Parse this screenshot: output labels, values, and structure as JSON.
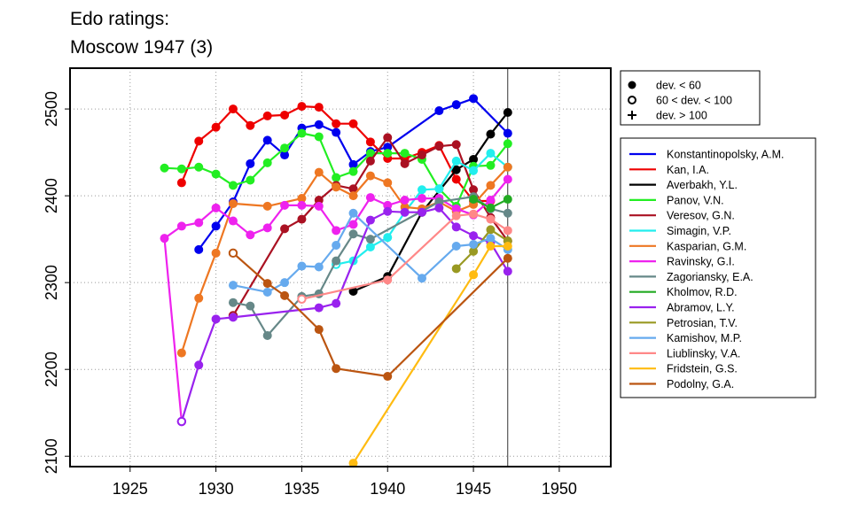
{
  "title": {
    "line1": "Edo ratings:",
    "line2": "Moscow 1947 (3)"
  },
  "colors": {
    "frame": "#000000",
    "grid": "#999999"
  },
  "chart_data": {
    "type": "line",
    "title": "Edo ratings: Moscow 1947 (3)",
    "xlabel": "",
    "ylabel": "",
    "xlim": [
      1921.5,
      1953
    ],
    "ylim": [
      2088,
      2547
    ],
    "x_ticks": [
      1925,
      1930,
      1935,
      1940,
      1945,
      1950
    ],
    "y_ticks": [
      2100,
      2200,
      2300,
      2400,
      2500
    ],
    "grid": true,
    "reference_line_x": 1947,
    "marker_legend": [
      {
        "label": "dev. < 60",
        "marker": "filled-circle"
      },
      {
        "label": "60 < dev. < 100",
        "marker": "open-circle"
      },
      {
        "label": "dev. > 100",
        "marker": "plus"
      }
    ],
    "legend_placement": "right",
    "series": [
      {
        "name": "Konstantinopolsky, A.M.",
        "color": "#0000ee",
        "points": [
          [
            1929,
            2338,
            "f"
          ],
          [
            1930,
            2365,
            "f"
          ],
          [
            1931,
            2393,
            "f"
          ],
          [
            1932,
            2437,
            "f"
          ],
          [
            1933,
            2464,
            "f"
          ],
          [
            1934,
            2447,
            "f"
          ],
          [
            1935,
            2478,
            "f"
          ],
          [
            1936,
            2482,
            "f"
          ],
          [
            1937,
            2473,
            "f"
          ],
          [
            1938,
            2436,
            "f"
          ],
          [
            1939,
            2451,
            "f"
          ],
          [
            1940,
            2456,
            "f"
          ],
          [
            1943,
            2498,
            "f"
          ],
          [
            1944,
            2505,
            "f"
          ],
          [
            1945,
            2512,
            "f"
          ],
          [
            1947,
            2472,
            "f"
          ]
        ]
      },
      {
        "name": "Kan, I.A.",
        "color": "#ee0000",
        "points": [
          [
            1928,
            2415,
            "f"
          ],
          [
            1929,
            2463,
            "f"
          ],
          [
            1930,
            2479,
            "f"
          ],
          [
            1931,
            2500,
            "f"
          ],
          [
            1932,
            2481,
            "f"
          ],
          [
            1933,
            2492,
            "f"
          ],
          [
            1934,
            2493,
            "f"
          ],
          [
            1935,
            2503,
            "f"
          ],
          [
            1936,
            2502,
            "f"
          ],
          [
            1937,
            2483,
            "f"
          ],
          [
            1938,
            2483,
            "f"
          ],
          [
            1939,
            2462,
            "f"
          ],
          [
            1940,
            2443,
            "f"
          ],
          [
            1941,
            2443,
            "f"
          ],
          [
            1942,
            2450,
            "f"
          ],
          [
            1943,
            2458,
            "f"
          ],
          [
            1944,
            2419,
            "f"
          ],
          [
            1945,
            2394,
            "f"
          ],
          [
            1946,
            2394,
            "f"
          ]
        ]
      },
      {
        "name": "Averbakh, Y.L.",
        "color": "#000000",
        "points": [
          [
            1938,
            2290,
            "f"
          ],
          [
            1940,
            2307,
            "f"
          ],
          [
            1942,
            2381,
            "f"
          ],
          [
            1944,
            2430,
            "f"
          ],
          [
            1945,
            2442,
            "f"
          ],
          [
            1946,
            2471,
            "f"
          ],
          [
            1947,
            2496,
            "f"
          ]
        ]
      },
      {
        "name": "Panov, V.N.",
        "color": "#22ee22",
        "points": [
          [
            1927,
            2432,
            "f"
          ],
          [
            1928,
            2431,
            "f"
          ],
          [
            1929,
            2433,
            "f"
          ],
          [
            1930,
            2425,
            "f"
          ],
          [
            1931,
            2412,
            "f"
          ],
          [
            1932,
            2418,
            "f"
          ],
          [
            1933,
            2438,
            "f"
          ],
          [
            1934,
            2455,
            "f"
          ],
          [
            1935,
            2472,
            "f"
          ],
          [
            1936,
            2468,
            "f"
          ],
          [
            1937,
            2421,
            "f"
          ],
          [
            1938,
            2428,
            "f"
          ],
          [
            1939,
            2449,
            "f"
          ],
          [
            1940,
            2449,
            "f"
          ],
          [
            1941,
            2449,
            "f"
          ],
          [
            1942,
            2442,
            "f"
          ],
          [
            1943,
            2408,
            "f"
          ],
          [
            1944,
            2388,
            "f"
          ],
          [
            1945,
            2434,
            "f"
          ],
          [
            1946,
            2435,
            "f"
          ],
          [
            1947,
            2460,
            "f"
          ]
        ]
      },
      {
        "name": "Veresov, G.N.",
        "color": "#aa1122",
        "points": [
          [
            1931,
            2262,
            "o"
          ],
          [
            1934,
            2362,
            "f"
          ],
          [
            1935,
            2373,
            "f"
          ],
          [
            1936,
            2395,
            "f"
          ],
          [
            1937,
            2412,
            "f"
          ],
          [
            1938,
            2408,
            "f"
          ],
          [
            1939,
            2440,
            "f"
          ],
          [
            1940,
            2467,
            "f"
          ],
          [
            1941,
            2437,
            "f"
          ],
          [
            1942,
            2447,
            "f"
          ],
          [
            1943,
            2457,
            "f"
          ],
          [
            1944,
            2459,
            "f"
          ],
          [
            1945,
            2407,
            "f"
          ],
          [
            1946,
            2375,
            "f"
          ],
          [
            1947,
            2348,
            "f"
          ]
        ]
      },
      {
        "name": "Simagin, V.P.",
        "color": "#22eeee",
        "points": [
          [
            1937,
            2321,
            "o"
          ],
          [
            1938,
            2325,
            "f"
          ],
          [
            1939,
            2341,
            "f"
          ],
          [
            1940,
            2352,
            "f"
          ],
          [
            1941,
            2381,
            "f"
          ],
          [
            1942,
            2407,
            "f"
          ],
          [
            1943,
            2408,
            "f"
          ],
          [
            1944,
            2440,
            "f"
          ],
          [
            1945,
            2429,
            "f"
          ],
          [
            1946,
            2449,
            "f"
          ],
          [
            1947,
            2433,
            "f"
          ]
        ]
      },
      {
        "name": "Kasparian, G.M.",
        "color": "#ee7722",
        "points": [
          [
            1928,
            2219,
            "f"
          ],
          [
            1929,
            2282,
            "f"
          ],
          [
            1930,
            2334,
            "f"
          ],
          [
            1931,
            2391,
            "f"
          ],
          [
            1933,
            2388,
            "f"
          ],
          [
            1935,
            2397,
            "f"
          ],
          [
            1936,
            2427,
            "f"
          ],
          [
            1937,
            2410,
            "f"
          ],
          [
            1938,
            2400,
            "f"
          ],
          [
            1939,
            2423,
            "f"
          ],
          [
            1940,
            2415,
            "f"
          ],
          [
            1941,
            2387,
            "f"
          ],
          [
            1942,
            2385,
            "f"
          ],
          [
            1943,
            2393,
            "f"
          ],
          [
            1944,
            2382,
            "f"
          ],
          [
            1945,
            2390,
            "f"
          ],
          [
            1946,
            2412,
            "f"
          ],
          [
            1947,
            2433,
            "f"
          ]
        ]
      },
      {
        "name": "Ravinsky, G.I.",
        "color": "#ee22ee",
        "points": [
          [
            1928,
            2140,
            "o"
          ],
          [
            1927,
            2351,
            "f"
          ],
          [
            1928,
            2365,
            "f"
          ],
          [
            1929,
            2369,
            "f"
          ],
          [
            1930,
            2386,
            "f"
          ],
          [
            1931,
            2371,
            "f"
          ],
          [
            1932,
            2355,
            "f"
          ],
          [
            1933,
            2363,
            "f"
          ],
          [
            1934,
            2389,
            "f"
          ],
          [
            1935,
            2389,
            "f"
          ],
          [
            1936,
            2388,
            "f"
          ],
          [
            1937,
            2360,
            "f"
          ],
          [
            1938,
            2367,
            "f"
          ],
          [
            1939,
            2398,
            "f"
          ],
          [
            1940,
            2389,
            "f"
          ],
          [
            1941,
            2395,
            "f"
          ],
          [
            1942,
            2397,
            "f"
          ],
          [
            1943,
            2397,
            "f"
          ],
          [
            1944,
            2385,
            "f"
          ],
          [
            1945,
            2378,
            "f"
          ],
          [
            1946,
            2395,
            "f"
          ],
          [
            1947,
            2419,
            "f"
          ]
        ]
      },
      {
        "name": "Zagoriansky, E.A.",
        "color": "#668888",
        "points": [
          [
            1931,
            2277,
            "f"
          ],
          [
            1932,
            2273,
            "f"
          ],
          [
            1933,
            2239,
            "f"
          ],
          [
            1935,
            2284,
            "f"
          ],
          [
            1936,
            2287,
            "f"
          ],
          [
            1937,
            2325,
            "f"
          ],
          [
            1938,
            2356,
            "f"
          ],
          [
            1939,
            2350,
            "f"
          ],
          [
            1943,
            2393,
            "f"
          ],
          [
            1945,
            2399,
            "f"
          ],
          [
            1946,
            2385,
            "f"
          ],
          [
            1947,
            2380,
            "f"
          ]
        ]
      },
      {
        "name": "Kholmov, R.D.",
        "color": "#22aa22",
        "points": [
          [
            1945,
            2396,
            "f"
          ],
          [
            1946,
            2386,
            "f"
          ],
          [
            1947,
            2396,
            "f"
          ]
        ]
      },
      {
        "name": "Abramov, L.Y.",
        "color": "#9922ee",
        "points": [
          [
            1928,
            2140,
            "o"
          ],
          [
            1929,
            2205,
            "f"
          ],
          [
            1930,
            2258,
            "f"
          ],
          [
            1931,
            2260,
            "f"
          ],
          [
            1936,
            2271,
            "f"
          ],
          [
            1937,
            2276,
            "f"
          ],
          [
            1939,
            2372,
            "f"
          ],
          [
            1940,
            2382,
            "f"
          ],
          [
            1941,
            2381,
            "f"
          ],
          [
            1942,
            2381,
            "f"
          ],
          [
            1943,
            2386,
            "f"
          ],
          [
            1944,
            2364,
            "f"
          ],
          [
            1945,
            2354,
            "f"
          ],
          [
            1946,
            2346,
            "f"
          ],
          [
            1947,
            2313,
            "f"
          ]
        ]
      },
      {
        "name": "Petrosian, T.V.",
        "color": "#999922",
        "points": [
          [
            1944,
            2316,
            "f"
          ],
          [
            1945,
            2336,
            "f"
          ],
          [
            1946,
            2361,
            "f"
          ],
          [
            1947,
            2348,
            "f"
          ]
        ]
      },
      {
        "name": "Kamishov, M.P.",
        "color": "#66aaee",
        "points": [
          [
            1931,
            2297,
            "f"
          ],
          [
            1933,
            2289,
            "f"
          ],
          [
            1934,
            2300,
            "f"
          ],
          [
            1935,
            2319,
            "f"
          ],
          [
            1936,
            2318,
            "f"
          ],
          [
            1937,
            2343,
            "f"
          ],
          [
            1938,
            2380,
            "f"
          ],
          [
            1942,
            2305,
            "f"
          ],
          [
            1944,
            2342,
            "f"
          ],
          [
            1945,
            2344,
            "f"
          ],
          [
            1946,
            2351,
            "f"
          ],
          [
            1947,
            2338,
            "f"
          ]
        ]
      },
      {
        "name": "Liublinsky, V.A.",
        "color": "#ff8888",
        "points": [
          [
            1935,
            2281,
            "o"
          ],
          [
            1940,
            2303,
            "f"
          ],
          [
            1944,
            2377,
            "f"
          ],
          [
            1945,
            2379,
            "f"
          ],
          [
            1946,
            2373,
            "f"
          ],
          [
            1947,
            2360,
            "f"
          ]
        ]
      },
      {
        "name": "Fridstein, G.S.",
        "color": "#ffbb11",
        "points": [
          [
            1938,
            2092,
            "f"
          ],
          [
            1945,
            2309,
            "f"
          ],
          [
            1946,
            2342,
            "f"
          ],
          [
            1947,
            2342,
            "f"
          ]
        ]
      },
      {
        "name": "Podolny, G.A.",
        "color": "#bb5511",
        "points": [
          [
            1931,
            2334,
            "o"
          ],
          [
            1933,
            2299,
            "f"
          ],
          [
            1934,
            2285,
            "f"
          ],
          [
            1936,
            2246,
            "f"
          ],
          [
            1937,
            2201,
            "f"
          ],
          [
            1940,
            2192,
            "f"
          ],
          [
            1947,
            2328,
            "f"
          ]
        ]
      }
    ]
  }
}
